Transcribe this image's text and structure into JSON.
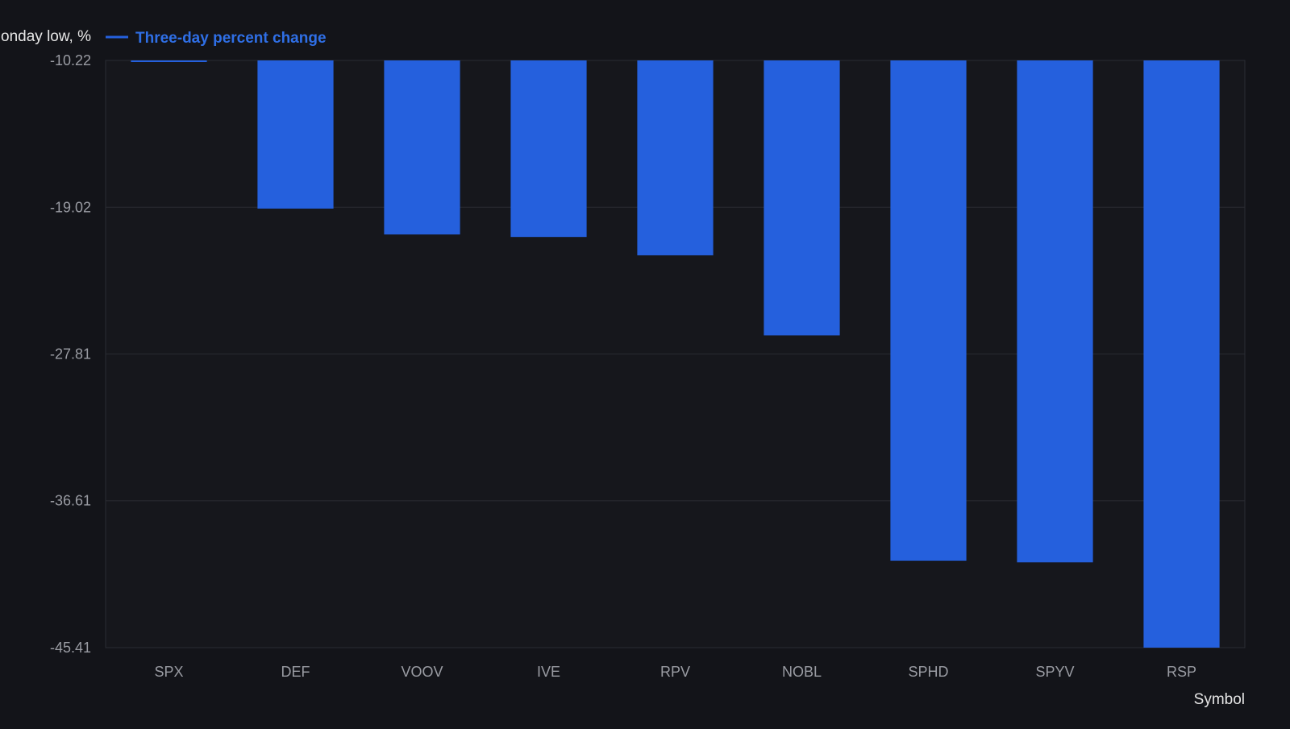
{
  "chart_data": {
    "type": "bar",
    "ylabel": "Monday low, %",
    "xlabel": "Symbol",
    "legend": {
      "entries": [
        "Three-day percent change"
      ],
      "placement": "top-left"
    },
    "series": [
      {
        "name": "Three-day percent change",
        "color": "#2560dd",
        "values": [
          -10.3,
          -19.1,
          -20.65,
          -20.8,
          -21.9,
          -26.7,
          -40.2,
          -40.3,
          -45.41
        ]
      }
    ],
    "categories": [
      "SPX",
      "DEF",
      "VOOV",
      "IVE",
      "RPV",
      "NOBL",
      "SPHD",
      "SPYV",
      "RSP"
    ],
    "yticks": [
      "-10.22",
      "-19.02",
      "-27.81",
      "-36.61",
      "-45.41"
    ],
    "ylim": [
      -45.41,
      -10.22
    ],
    "y_reversed": true,
    "grid": true,
    "colors": {
      "background": "#131419",
      "bar": "#2560dd",
      "grid": "#2a2c33",
      "legend_text": "#2f6fe6"
    }
  }
}
